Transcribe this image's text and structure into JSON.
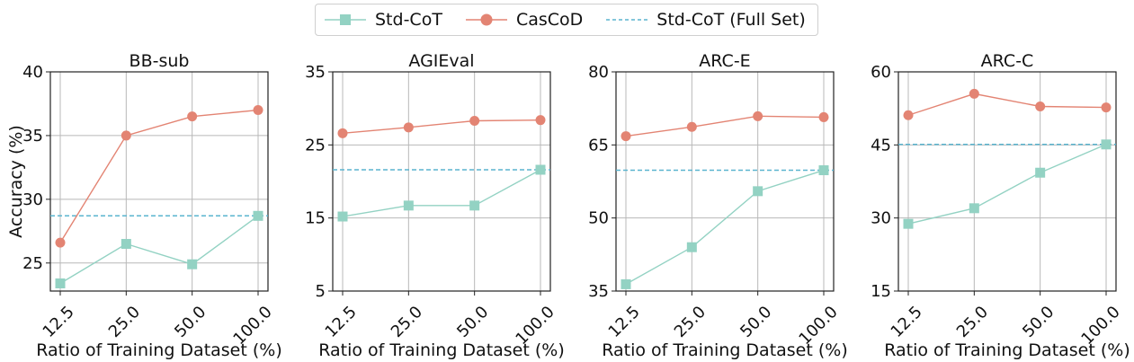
{
  "colors": {
    "std": "#93d2c3",
    "cas": "#e38473",
    "full": "#5ab4cf",
    "grid": "#b8b8b8"
  },
  "legend": {
    "std_label": "Std-CoT",
    "cas_label": "CasCoD",
    "full_label": "Std-CoT (Full Set)"
  },
  "chart_data": [
    {
      "type": "line",
      "title": "BB-sub",
      "xlabel": "Ratio of Training Dataset (%)",
      "ylabel": "Accuracy (%)",
      "categories": [
        "12.5",
        "25.0",
        "50.0",
        "100.0"
      ],
      "ylim": [
        22.8,
        40
      ],
      "yticks": [
        25,
        30,
        35,
        40
      ],
      "series": [
        {
          "name": "Std-CoT",
          "marker": "square",
          "values": [
            23.4,
            26.5,
            24.9,
            28.7
          ]
        },
        {
          "name": "CasCoD",
          "marker": "circle",
          "values": [
            26.6,
            35.0,
            36.5,
            37.0
          ]
        }
      ],
      "reference": {
        "name": "Std-CoT (Full Set)",
        "value": 28.7
      }
    },
    {
      "type": "line",
      "title": "AGIEval",
      "xlabel": "Ratio of Training Dataset (%)",
      "ylabel": "",
      "categories": [
        "12.5",
        "25.0",
        "50.0",
        "100.0"
      ],
      "ylim": [
        5,
        35
      ],
      "yticks": [
        5,
        15,
        25,
        35
      ],
      "series": [
        {
          "name": "Std-CoT",
          "marker": "square",
          "values": [
            15.2,
            16.7,
            16.7,
            21.6
          ]
        },
        {
          "name": "CasCoD",
          "marker": "circle",
          "values": [
            26.6,
            27.4,
            28.3,
            28.4
          ]
        }
      ],
      "reference": {
        "name": "Std-CoT (Full Set)",
        "value": 21.6
      }
    },
    {
      "type": "line",
      "title": "ARC-E",
      "xlabel": "Ratio of Training Dataset (%)",
      "ylabel": "",
      "categories": [
        "12.5",
        "25.0",
        "50.0",
        "100.0"
      ],
      "ylim": [
        35,
        80
      ],
      "yticks": [
        35,
        50,
        65,
        80
      ],
      "series": [
        {
          "name": "Std-CoT",
          "marker": "square",
          "values": [
            36.4,
            44.0,
            55.5,
            59.8
          ]
        },
        {
          "name": "CasCoD",
          "marker": "circle",
          "values": [
            66.8,
            68.7,
            70.9,
            70.7
          ]
        }
      ],
      "reference": {
        "name": "Std-CoT (Full Set)",
        "value": 59.8
      }
    },
    {
      "type": "line",
      "title": "ARC-C",
      "xlabel": "Ratio of Training Dataset (%)",
      "ylabel": "",
      "categories": [
        "12.5",
        "25.0",
        "50.0",
        "100.0"
      ],
      "ylim": [
        15,
        60
      ],
      "yticks": [
        15,
        30,
        45,
        60
      ],
      "series": [
        {
          "name": "Std-CoT",
          "marker": "square",
          "values": [
            28.8,
            32.0,
            39.3,
            45.1
          ]
        },
        {
          "name": "CasCoD",
          "marker": "circle",
          "values": [
            51.1,
            55.5,
            52.9,
            52.7
          ]
        }
      ],
      "reference": {
        "name": "Std-CoT (Full Set)",
        "value": 45.1
      }
    }
  ]
}
